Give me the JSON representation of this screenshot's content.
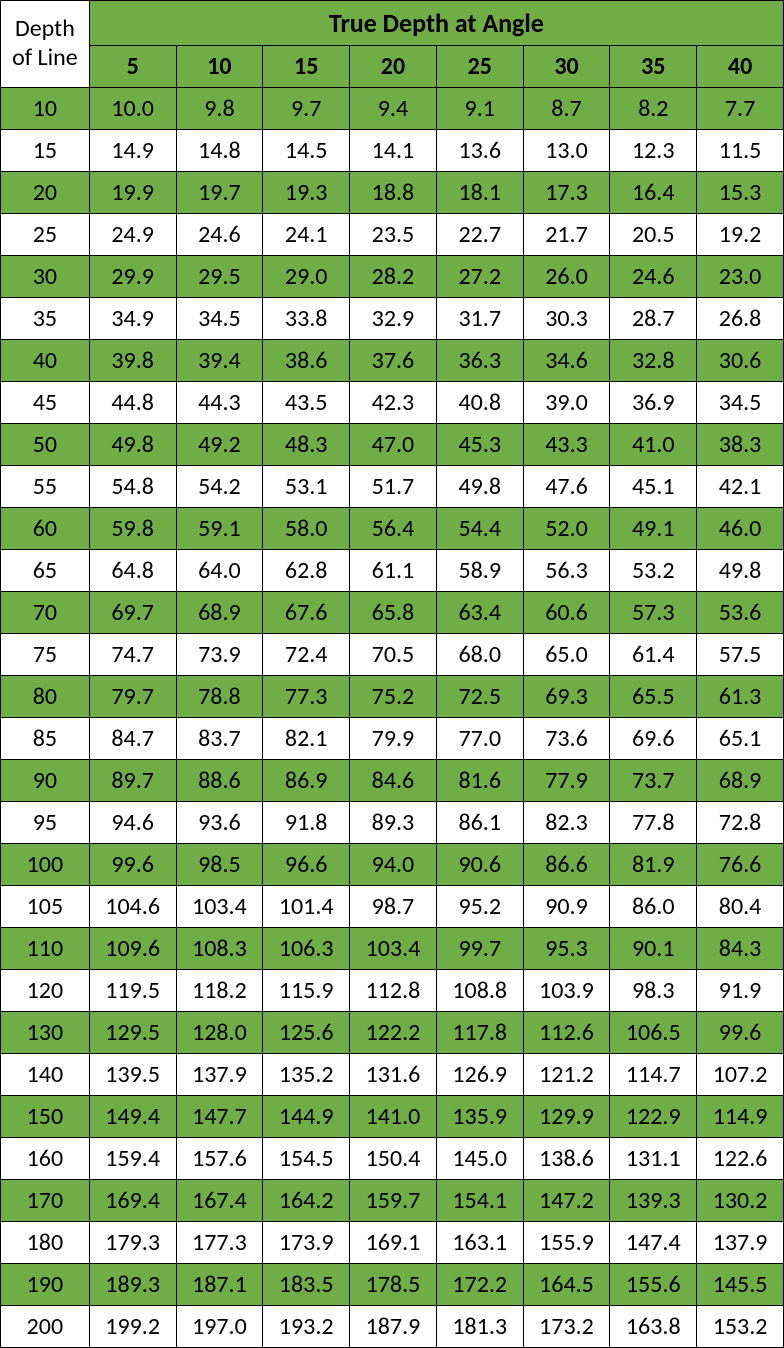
{
  "table": {
    "corner_header_line1": "Depth",
    "corner_header_line2": "of Line",
    "title": "True Depth at Angle",
    "angle_columns": [
      "5",
      "10",
      "15",
      "20",
      "25",
      "30",
      "35",
      "40"
    ],
    "colors": {
      "header_green": "#70ad47",
      "row_green": "#70ad47",
      "row_white": "#ffffff",
      "border": "#000000",
      "text": "#000000"
    },
    "rows": [
      {
        "depth": "10",
        "vals": [
          "10.0",
          "9.8",
          "9.7",
          "9.4",
          "9.1",
          "8.7",
          "8.2",
          "7.7"
        ],
        "shade": "green"
      },
      {
        "depth": "15",
        "vals": [
          "14.9",
          "14.8",
          "14.5",
          "14.1",
          "13.6",
          "13.0",
          "12.3",
          "11.5"
        ],
        "shade": "white"
      },
      {
        "depth": "20",
        "vals": [
          "19.9",
          "19.7",
          "19.3",
          "18.8",
          "18.1",
          "17.3",
          "16.4",
          "15.3"
        ],
        "shade": "green"
      },
      {
        "depth": "25",
        "vals": [
          "24.9",
          "24.6",
          "24.1",
          "23.5",
          "22.7",
          "21.7",
          "20.5",
          "19.2"
        ],
        "shade": "white"
      },
      {
        "depth": "30",
        "vals": [
          "29.9",
          "29.5",
          "29.0",
          "28.2",
          "27.2",
          "26.0",
          "24.6",
          "23.0"
        ],
        "shade": "green"
      },
      {
        "depth": "35",
        "vals": [
          "34.9",
          "34.5",
          "33.8",
          "32.9",
          "31.7",
          "30.3",
          "28.7",
          "26.8"
        ],
        "shade": "white"
      },
      {
        "depth": "40",
        "vals": [
          "39.8",
          "39.4",
          "38.6",
          "37.6",
          "36.3",
          "34.6",
          "32.8",
          "30.6"
        ],
        "shade": "green"
      },
      {
        "depth": "45",
        "vals": [
          "44.8",
          "44.3",
          "43.5",
          "42.3",
          "40.8",
          "39.0",
          "36.9",
          "34.5"
        ],
        "shade": "white"
      },
      {
        "depth": "50",
        "vals": [
          "49.8",
          "49.2",
          "48.3",
          "47.0",
          "45.3",
          "43.3",
          "41.0",
          "38.3"
        ],
        "shade": "green"
      },
      {
        "depth": "55",
        "vals": [
          "54.8",
          "54.2",
          "53.1",
          "51.7",
          "49.8",
          "47.6",
          "45.1",
          "42.1"
        ],
        "shade": "white"
      },
      {
        "depth": "60",
        "vals": [
          "59.8",
          "59.1",
          "58.0",
          "56.4",
          "54.4",
          "52.0",
          "49.1",
          "46.0"
        ],
        "shade": "green"
      },
      {
        "depth": "65",
        "vals": [
          "64.8",
          "64.0",
          "62.8",
          "61.1",
          "58.9",
          "56.3",
          "53.2",
          "49.8"
        ],
        "shade": "white"
      },
      {
        "depth": "70",
        "vals": [
          "69.7",
          "68.9",
          "67.6",
          "65.8",
          "63.4",
          "60.6",
          "57.3",
          "53.6"
        ],
        "shade": "green"
      },
      {
        "depth": "75",
        "vals": [
          "74.7",
          "73.9",
          "72.4",
          "70.5",
          "68.0",
          "65.0",
          "61.4",
          "57.5"
        ],
        "shade": "white"
      },
      {
        "depth": "80",
        "vals": [
          "79.7",
          "78.8",
          "77.3",
          "75.2",
          "72.5",
          "69.3",
          "65.5",
          "61.3"
        ],
        "shade": "green"
      },
      {
        "depth": "85",
        "vals": [
          "84.7",
          "83.7",
          "82.1",
          "79.9",
          "77.0",
          "73.6",
          "69.6",
          "65.1"
        ],
        "shade": "white"
      },
      {
        "depth": "90",
        "vals": [
          "89.7",
          "88.6",
          "86.9",
          "84.6",
          "81.6",
          "77.9",
          "73.7",
          "68.9"
        ],
        "shade": "green"
      },
      {
        "depth": "95",
        "vals": [
          "94.6",
          "93.6",
          "91.8",
          "89.3",
          "86.1",
          "82.3",
          "77.8",
          "72.8"
        ],
        "shade": "white"
      },
      {
        "depth": "100",
        "vals": [
          "99.6",
          "98.5",
          "96.6",
          "94.0",
          "90.6",
          "86.6",
          "81.9",
          "76.6"
        ],
        "shade": "green"
      },
      {
        "depth": "105",
        "vals": [
          "104.6",
          "103.4",
          "101.4",
          "98.7",
          "95.2",
          "90.9",
          "86.0",
          "80.4"
        ],
        "shade": "white"
      },
      {
        "depth": "110",
        "vals": [
          "109.6",
          "108.3",
          "106.3",
          "103.4",
          "99.7",
          "95.3",
          "90.1",
          "84.3"
        ],
        "shade": "green"
      },
      {
        "depth": "120",
        "vals": [
          "119.5",
          "118.2",
          "115.9",
          "112.8",
          "108.8",
          "103.9",
          "98.3",
          "91.9"
        ],
        "shade": "white"
      },
      {
        "depth": "130",
        "vals": [
          "129.5",
          "128.0",
          "125.6",
          "122.2",
          "117.8",
          "112.6",
          "106.5",
          "99.6"
        ],
        "shade": "green"
      },
      {
        "depth": "140",
        "vals": [
          "139.5",
          "137.9",
          "135.2",
          "131.6",
          "126.9",
          "121.2",
          "114.7",
          "107.2"
        ],
        "shade": "white"
      },
      {
        "depth": "150",
        "vals": [
          "149.4",
          "147.7",
          "144.9",
          "141.0",
          "135.9",
          "129.9",
          "122.9",
          "114.9"
        ],
        "shade": "green"
      },
      {
        "depth": "160",
        "vals": [
          "159.4",
          "157.6",
          "154.5",
          "150.4",
          "145.0",
          "138.6",
          "131.1",
          "122.6"
        ],
        "shade": "white"
      },
      {
        "depth": "170",
        "vals": [
          "169.4",
          "167.4",
          "164.2",
          "159.7",
          "154.1",
          "147.2",
          "139.3",
          "130.2"
        ],
        "shade": "green"
      },
      {
        "depth": "180",
        "vals": [
          "179.3",
          "177.3",
          "173.9",
          "169.1",
          "163.1",
          "155.9",
          "147.4",
          "137.9"
        ],
        "shade": "white"
      },
      {
        "depth": "190",
        "vals": [
          "189.3",
          "187.1",
          "183.5",
          "178.5",
          "172.2",
          "164.5",
          "155.6",
          "145.5"
        ],
        "shade": "green"
      },
      {
        "depth": "200",
        "vals": [
          "199.2",
          "197.0",
          "193.2",
          "187.9",
          "181.3",
          "173.2",
          "163.8",
          "153.2"
        ],
        "shade": "white"
      }
    ]
  }
}
